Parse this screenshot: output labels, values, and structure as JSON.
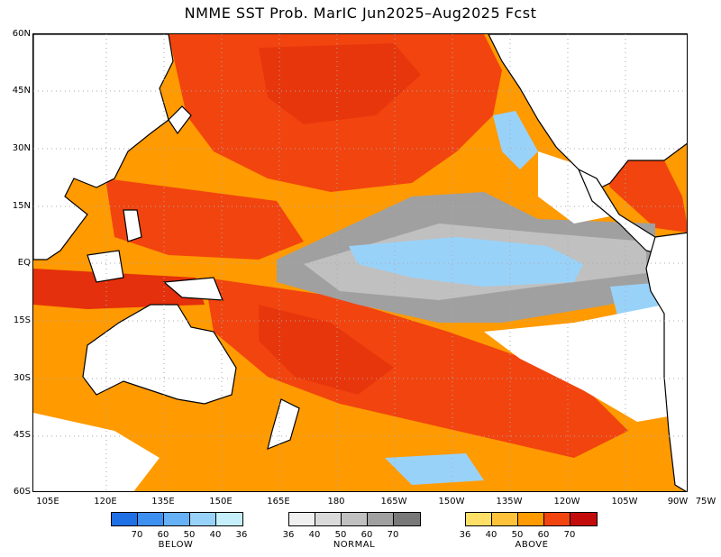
{
  "title": "NMME SST Prob. MarIC  Jun2025–Aug2025 Fcst",
  "lat_labels": [
    "60N",
    "45N",
    "30N",
    "15N",
    "EQ",
    "15S",
    "30S",
    "45S",
    "60S"
  ],
  "lon_labels": [
    "105E",
    "120E",
    "135E",
    "150E",
    "165E",
    "180",
    "165W",
    "150W",
    "135W",
    "120W",
    "105W",
    "90W",
    "75W"
  ],
  "legend": {
    "below": {
      "label": "BELOW",
      "colors": [
        "#1f6fe5",
        "#3d8ff0",
        "#66b0f6",
        "#99d2f9",
        "#c5f0fb"
      ],
      "ticks": [
        "70",
        "60",
        "50",
        "40",
        "36"
      ]
    },
    "normal": {
      "label": "NORMAL",
      "colors": [
        "#f0f0f0",
        "#dadada",
        "#c0c0c0",
        "#a0a0a0",
        "#787878"
      ],
      "ticks": [
        "36",
        "40",
        "50",
        "60",
        "70"
      ]
    },
    "above": {
      "label": "ABOVE",
      "colors": [
        "#ffe066",
        "#ffc23a",
        "#ff9a00",
        "#f2440f",
        "#c40b0b"
      ],
      "ticks": [
        "36",
        "40",
        "50",
        "60",
        "70"
      ]
    }
  },
  "colors": {
    "land": "#ffffff",
    "coast": "#000000",
    "grid": "#aaaaaa"
  }
}
